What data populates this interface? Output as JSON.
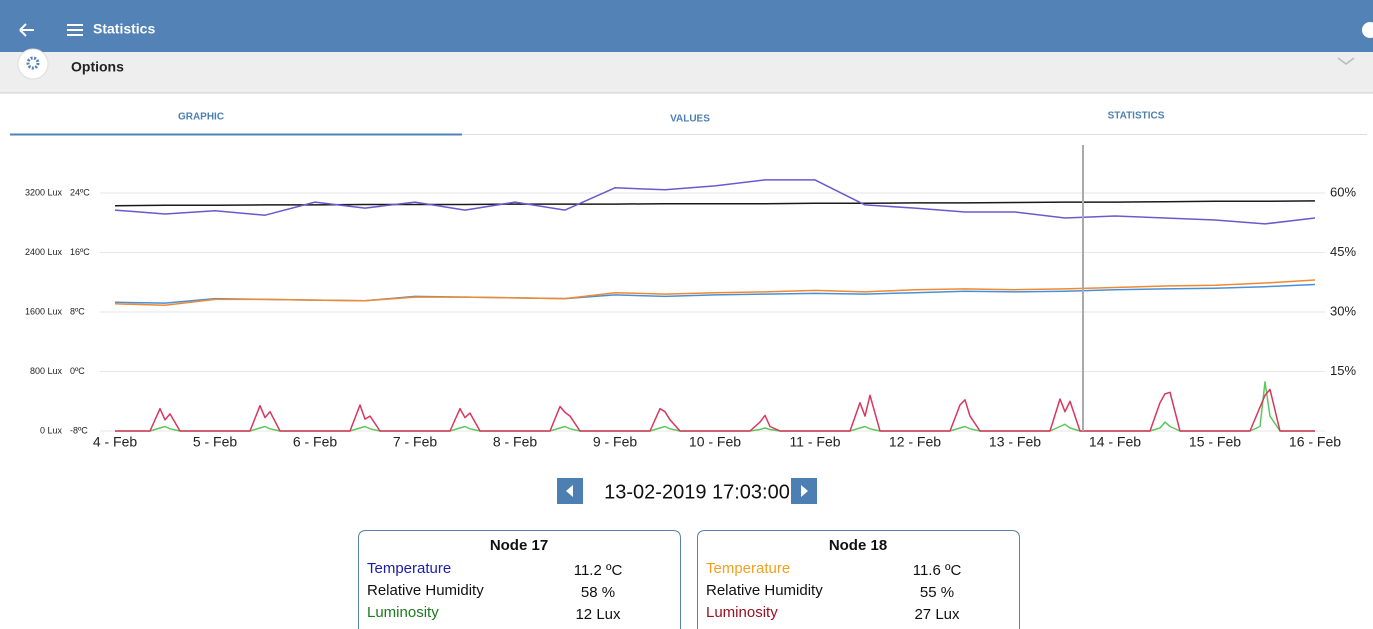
{
  "header": {
    "title": "Statistics"
  },
  "options": {
    "title": "Options"
  },
  "tabs": [
    "GRAPHIC",
    "VALUES",
    "STATISTICS"
  ],
  "chart_data": {
    "type": "line",
    "xlim": [
      0,
      12
    ],
    "xticks": [
      {
        "value": 0,
        "label": "4 - Feb"
      },
      {
        "value": 1,
        "label": "5 - Feb"
      },
      {
        "value": 2,
        "label": "6 - Feb"
      },
      {
        "value": 3,
        "label": "7 - Feb"
      },
      {
        "value": 4,
        "label": "8 - Feb"
      },
      {
        "value": 5,
        "label": "9 - Feb"
      },
      {
        "value": 6,
        "label": "10 - Feb"
      },
      {
        "value": 7,
        "label": "11 - Feb"
      },
      {
        "value": 8,
        "label": "12 - Feb"
      },
      {
        "value": 9,
        "label": "13 - Feb"
      },
      {
        "value": 10,
        "label": "14 - Feb"
      },
      {
        "value": 11,
        "label": "15 - Feb"
      },
      {
        "value": 12,
        "label": "16 - Feb"
      }
    ],
    "ylim": [
      -8,
      32
    ],
    "yticks": [
      {
        "value": -8,
        "label": "-8ºC"
      },
      {
        "value": 0,
        "label": "0ºC"
      },
      {
        "value": 8,
        "label": "8ºC"
      },
      {
        "value": 16,
        "label": "16ºC"
      },
      {
        "value": 24,
        "label": "24ºC"
      }
    ],
    "y2lim": [
      0,
      75
    ],
    "y2ticks": [
      {
        "value": 15,
        "label": "15%"
      },
      {
        "value": 30,
        "label": "30%"
      },
      {
        "value": 45,
        "label": "45%"
      },
      {
        "value": 60,
        "label": "60%"
      }
    ],
    "y3lim": [
      0,
      4000
    ],
    "y3ticks": [
      {
        "value": 0,
        "label": "0 Lux"
      },
      {
        "value": 800,
        "label": "800 Lux"
      },
      {
        "value": 1600,
        "label": "1600 Lux"
      },
      {
        "value": 2400,
        "label": "2400 Lux"
      },
      {
        "value": 3200,
        "label": "3200 Lux"
      }
    ],
    "grid": true,
    "series": [
      {
        "color": "#1a1a1a",
        "axis": "y2",
        "x": [
          0,
          0.5,
          1,
          1.5,
          2,
          2.5,
          3,
          3.5,
          4,
          4.5,
          5,
          5.5,
          6,
          6.5,
          7,
          7.5,
          8,
          8.5,
          9,
          9.5,
          10,
          10.5,
          11,
          11.5,
          12
        ],
        "values": [
          56.8,
          56.9,
          56.9,
          57.0,
          57.0,
          57.1,
          57.1,
          57.1,
          57.2,
          57.2,
          57.2,
          57.3,
          57.3,
          57.3,
          57.4,
          57.4,
          57.5,
          57.5,
          57.6,
          57.7,
          57.7,
          57.8,
          57.9,
          57.9,
          58.0
        ]
      },
      {
        "color": "#6a5acd",
        "axis": "y2",
        "x": [
          0,
          0.5,
          1,
          1.5,
          2,
          2.5,
          3,
          3.5,
          4,
          4.5,
          5,
          5.5,
          6,
          6.5,
          7,
          7.5,
          8,
          8.5,
          9,
          9.5,
          10,
          10.5,
          11,
          11.5,
          12
        ],
        "values": [
          55.7,
          54.7,
          55.5,
          54.4,
          57.7,
          56.2,
          57.7,
          55.7,
          57.7,
          55.7,
          61.3,
          60.8,
          61.8,
          63.3,
          63.3,
          57.0,
          56.2,
          55.2,
          55.2,
          53.7,
          54.2,
          53.7,
          53.2,
          52.2,
          53.7
        ]
      },
      {
        "color": "#4a90d9",
        "axis": "y",
        "x": [
          0,
          0.5,
          1,
          1.5,
          2,
          2.5,
          3,
          3.5,
          4,
          4.5,
          5,
          5.5,
          6,
          6.5,
          7,
          7.5,
          8,
          8.5,
          9,
          9.5,
          10,
          10.5,
          11,
          11.5,
          12
        ],
        "values": [
          9.3,
          9.2,
          9.8,
          9.7,
          9.6,
          9.5,
          10.1,
          10.0,
          9.9,
          9.8,
          10.3,
          10.1,
          10.3,
          10.4,
          10.5,
          10.4,
          10.6,
          10.8,
          10.7,
          10.8,
          11.0,
          11.1,
          11.2,
          11.4,
          11.7
        ]
      },
      {
        "color": "#f08a30",
        "axis": "y",
        "x": [
          0,
          0.5,
          1,
          1.5,
          2,
          2.5,
          3,
          3.5,
          4,
          4.5,
          5,
          5.5,
          6,
          6.5,
          7,
          7.5,
          8,
          8.5,
          9,
          9.5,
          10,
          10.5,
          11,
          11.5,
          12
        ],
        "values": [
          9.1,
          8.9,
          9.7,
          9.7,
          9.6,
          9.5,
          10.0,
          10.0,
          9.9,
          9.8,
          10.6,
          10.4,
          10.6,
          10.7,
          10.9,
          10.7,
          11.0,
          11.1,
          11.0,
          11.1,
          11.3,
          11.5,
          11.6,
          11.9,
          12.3
        ]
      },
      {
        "color": "#5cc85c",
        "axis": "y3",
        "x": [
          0,
          0.35,
          0.45,
          0.5,
          0.55,
          0.65,
          1.35,
          1.45,
          1.5,
          1.55,
          1.65,
          2.35,
          2.45,
          2.5,
          2.55,
          2.65,
          3.35,
          3.45,
          3.5,
          3.55,
          3.65,
          4.35,
          4.45,
          4.5,
          4.55,
          4.65,
          5.35,
          5.45,
          5.5,
          5.55,
          5.65,
          6.35,
          6.45,
          6.5,
          6.55,
          6.65,
          7.35,
          7.45,
          7.5,
          7.55,
          7.65,
          8.35,
          8.45,
          8.5,
          8.55,
          8.65,
          9.35,
          9.45,
          9.5,
          9.55,
          9.65,
          10.35,
          10.45,
          10.5,
          10.55,
          10.65,
          11.35,
          11.45,
          11.5,
          11.55,
          11.65,
          12
        ],
        "values": [
          0,
          0,
          40,
          60,
          30,
          0,
          0,
          40,
          60,
          30,
          0,
          0,
          40,
          60,
          30,
          0,
          0,
          40,
          60,
          30,
          0,
          0,
          40,
          60,
          30,
          0,
          0,
          40,
          60,
          30,
          0,
          0,
          20,
          40,
          20,
          0,
          0,
          40,
          60,
          30,
          0,
          0,
          40,
          60,
          30,
          0,
          0,
          60,
          90,
          40,
          0,
          0,
          40,
          120,
          60,
          0,
          0,
          60,
          660,
          200,
          0,
          0
        ]
      },
      {
        "color": "#d9365e",
        "axis": "y3",
        "x": [
          0,
          0.35,
          0.45,
          0.5,
          0.55,
          0.65,
          1.35,
          1.45,
          1.5,
          1.55,
          1.65,
          2.35,
          2.45,
          2.5,
          2.55,
          2.65,
          3.35,
          3.45,
          3.5,
          3.55,
          3.65,
          4.35,
          4.45,
          4.5,
          4.55,
          4.65,
          5.35,
          5.45,
          5.5,
          5.55,
          5.65,
          6.35,
          6.45,
          6.5,
          6.55,
          6.65,
          7.35,
          7.45,
          7.5,
          7.55,
          7.65,
          8.35,
          8.45,
          8.5,
          8.55,
          8.65,
          9.35,
          9.45,
          9.5,
          9.55,
          9.65,
          10.35,
          10.45,
          10.5,
          10.55,
          10.65,
          11.35,
          11.45,
          11.5,
          11.55,
          11.65,
          12
        ],
        "values": [
          0,
          0,
          300,
          150,
          230,
          0,
          0,
          340,
          180,
          260,
          0,
          0,
          350,
          160,
          200,
          0,
          0,
          300,
          180,
          240,
          0,
          0,
          330,
          250,
          200,
          0,
          0,
          300,
          260,
          150,
          0,
          0,
          120,
          210,
          60,
          0,
          0,
          380,
          200,
          480,
          0,
          0,
          350,
          420,
          200,
          0,
          0,
          430,
          260,
          400,
          0,
          0,
          380,
          500,
          520,
          0,
          0,
          320,
          480,
          560,
          0,
          0
        ]
      }
    ]
  },
  "navigator": {
    "datetime": "13-02-2019 17:03:00"
  },
  "nodes": [
    {
      "title": "Node 17",
      "rows": [
        {
          "label": "Temperature",
          "value": "11.2 ºC",
          "color": "#1c1caa"
        },
        {
          "label": "Relative Humidity",
          "value": "58 %",
          "color": "#111111"
        },
        {
          "label": "Luminosity",
          "value": "12 Lux",
          "color": "#1d7a1d"
        }
      ]
    },
    {
      "title": "Node 18",
      "rows": [
        {
          "label": "Temperature",
          "value": "11.6 ºC",
          "color": "#f0a020"
        },
        {
          "label": "Relative Humidity",
          "value": "55 %",
          "color": "#111111"
        },
        {
          "label": "Luminosity",
          "value": "27 Lux",
          "color": "#9a1020"
        }
      ]
    }
  ]
}
